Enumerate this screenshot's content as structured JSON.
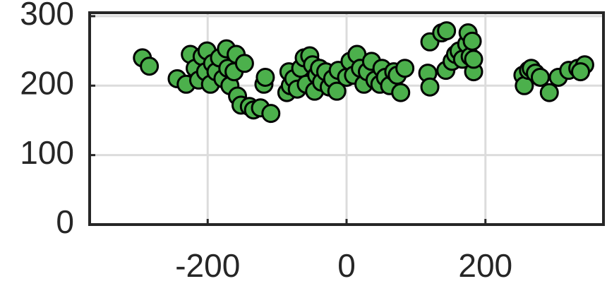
{
  "chart_data": {
    "type": "scatter",
    "x": [
      -294,
      -284,
      -244,
      -231,
      -225,
      -218,
      -213,
      -208,
      -203,
      -201,
      -196,
      -193,
      -188,
      -183,
      -178,
      -173,
      -171,
      -168,
      -162,
      -159,
      -157,
      -152,
      -147,
      -140,
      -134,
      -124,
      -119,
      -117,
      -109,
      -86,
      -81,
      -83,
      -76,
      -71,
      -66,
      -61,
      -58,
      -53,
      -49,
      -46,
      -43,
      -39,
      -36,
      -30,
      -25,
      -20,
      -14,
      -12,
      0,
      5,
      10,
      15,
      20,
      25,
      30,
      36,
      41,
      48,
      51,
      56,
      62,
      68,
      73,
      78,
      84,
      117,
      120,
      120,
      137,
      144,
      143,
      152,
      157,
      162,
      167,
      173,
      175,
      178,
      181,
      183,
      183,
      254,
      256,
      262,
      266,
      272,
      279,
      292,
      305,
      320,
      333,
      343,
      337
    ],
    "values": [
      240,
      228,
      210,
      202,
      245,
      225,
      208,
      242,
      220,
      250,
      202,
      232,
      220,
      240,
      210,
      253,
      225,
      200,
      220,
      245,
      185,
      172,
      232,
      170,
      165,
      168,
      202,
      212,
      160,
      190,
      200,
      220,
      210,
      195,
      225,
      240,
      202,
      243,
      230,
      192,
      215,
      225,
      205,
      220,
      198,
      210,
      192,
      222,
      212,
      235,
      215,
      245,
      225,
      202,
      220,
      235,
      208,
      202,
      225,
      212,
      200,
      220,
      215,
      190,
      225,
      218,
      198,
      263,
      276,
      279,
      222,
      235,
      245,
      250,
      238,
      260,
      276,
      242,
      264,
      220,
      238,
      215,
      200,
      222,
      225,
      218,
      212,
      190,
      212,
      222,
      225,
      230,
      220
    ],
    "color": "#4cb04c",
    "xlim": [
      -370,
      370
    ],
    "ylim": [
      0,
      305
    ],
    "xticks": [
      -200,
      0,
      200
    ],
    "yticks": [
      0,
      100,
      200,
      300
    ],
    "grid": true
  }
}
